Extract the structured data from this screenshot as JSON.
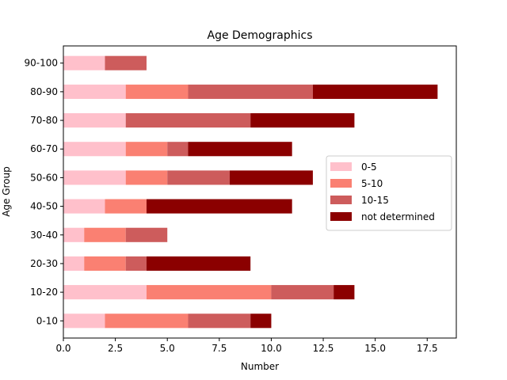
{
  "chart_data": {
    "type": "bar",
    "orientation": "horizontal",
    "stacked": true,
    "title": "Age Demographics",
    "xlabel": "Number",
    "ylabel": "Age Group",
    "xlim": [
      0,
      18.9
    ],
    "xticks": [
      "0.0",
      "2.5",
      "5.0",
      "7.5",
      "10.0",
      "12.5",
      "15.0",
      "17.5"
    ],
    "xtick_values": [
      0,
      2.5,
      5,
      7.5,
      10,
      12.5,
      15,
      17.5
    ],
    "categories": [
      "0-10",
      "10-20",
      "20-30",
      "30-40",
      "40-50",
      "50-60",
      "60-70",
      "70-80",
      "80-90",
      "90-100"
    ],
    "series": [
      {
        "name": "0-5",
        "color": "#ffc0cb",
        "values": [
          2,
          4,
          1,
          1,
          2,
          3,
          3,
          3,
          3,
          2
        ]
      },
      {
        "name": "5-10",
        "color": "#fa8072",
        "values": [
          4,
          6,
          2,
          2,
          2,
          2,
          2,
          0,
          3,
          0
        ]
      },
      {
        "name": "10-15",
        "color": "#cd5c5c",
        "values": [
          3,
          3,
          1,
          2,
          0,
          3,
          1,
          6,
          6,
          2
        ]
      },
      {
        "name": "not determined",
        "color": "#8b0000",
        "values": [
          1,
          1,
          5,
          0,
          7,
          4,
          5,
          5,
          6,
          0
        ]
      }
    ],
    "legend_position": "center-right",
    "grid": false
  }
}
